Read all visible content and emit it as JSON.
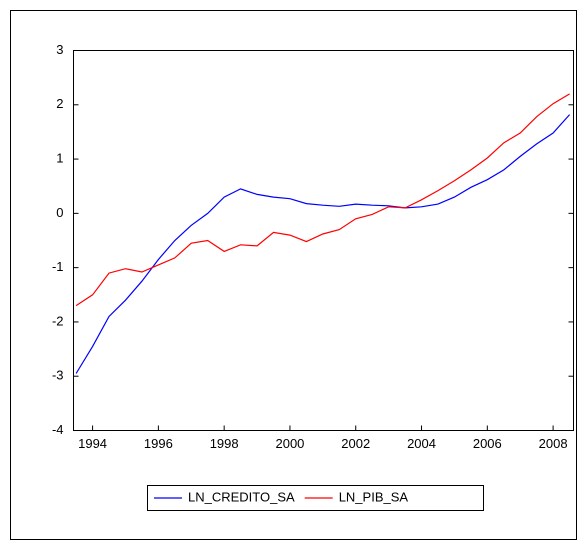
{
  "chart_data": {
    "type": "line",
    "x": [
      1993.5,
      1994.0,
      1994.5,
      1995.0,
      1995.5,
      1996.0,
      1996.5,
      1997.0,
      1997.5,
      1998.0,
      1998.5,
      1999.0,
      1999.5,
      2000.0,
      2000.5,
      2001.0,
      2001.5,
      2002.0,
      2002.5,
      2003.0,
      2003.5,
      2004.0,
      2004.5,
      2005.0,
      2005.5,
      2006.0,
      2006.5,
      2007.0,
      2007.5,
      2008.0,
      2008.5
    ],
    "series": [
      {
        "name": "LN_CREDITO_SA",
        "color": "#0000ff",
        "values": [
          -2.95,
          -2.45,
          -1.9,
          -1.6,
          -1.25,
          -0.85,
          -0.5,
          -0.22,
          0.0,
          0.3,
          0.45,
          0.35,
          0.3,
          0.27,
          0.18,
          0.15,
          0.13,
          0.17,
          0.15,
          0.14,
          0.1,
          0.12,
          0.17,
          0.3,
          0.48,
          0.62,
          0.8,
          1.05,
          1.28,
          1.48,
          1.82
        ]
      },
      {
        "name": "LN_PIB_SA",
        "color": "#ff0000",
        "values": [
          -1.7,
          -1.5,
          -1.1,
          -1.02,
          -1.08,
          -0.95,
          -0.82,
          -0.55,
          -0.5,
          -0.7,
          -0.58,
          -0.6,
          -0.35,
          -0.4,
          -0.52,
          -0.38,
          -0.3,
          -0.1,
          -0.02,
          0.12,
          0.1,
          0.25,
          0.42,
          0.6,
          0.8,
          1.02,
          1.3,
          1.48,
          1.78,
          2.02,
          2.2
        ]
      }
    ],
    "xlim": [
      1993.42,
      2008.62
    ],
    "xticks": [
      1994,
      1996,
      1998,
      2000,
      2002,
      2004,
      2006,
      2008
    ],
    "ylim": [
      -4,
      3
    ],
    "yticks": [
      -4,
      -3,
      -2,
      -1,
      0,
      1,
      2,
      3
    ],
    "legend": "bottom"
  }
}
